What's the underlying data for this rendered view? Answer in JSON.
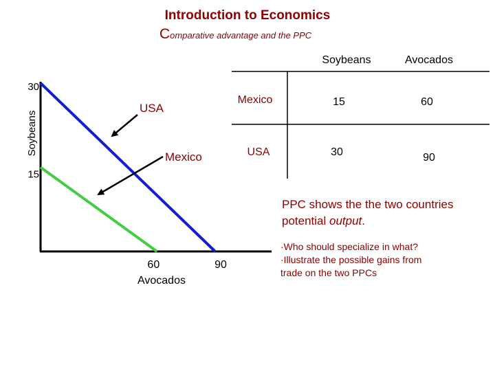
{
  "header": {
    "title": "Introduction to Economics",
    "subtitle_initial": "C",
    "subtitle_rest": "omparative advantage and the PPC"
  },
  "table": {
    "columns": [
      "Soybeans",
      "Avocados"
    ],
    "rows": [
      {
        "country": "Mexico",
        "soybeans": "15",
        "avocados": "60"
      },
      {
        "country": "USA",
        "soybeans": "30",
        "avocados": "90"
      }
    ]
  },
  "chart_data": {
    "type": "line",
    "ylabel": "Soybeans",
    "xlabel": "Avocados",
    "y_ticks": [
      "30",
      "15"
    ],
    "x_ticks": [
      "60",
      "90"
    ],
    "series": [
      {
        "name": "USA",
        "color": "#1020d0",
        "points": [
          [
            0,
            30
          ],
          [
            90,
            0
          ]
        ]
      },
      {
        "name": "Mexico",
        "color": "#44cc44",
        "points": [
          [
            0,
            15
          ],
          [
            60,
            0
          ]
        ]
      }
    ],
    "annotations": [
      {
        "text": "USA",
        "points_to": "USA"
      },
      {
        "text": "Mexico",
        "points_to": "Mexico"
      }
    ]
  },
  "notes": {
    "main_1": "PPC shows the the two countries",
    "main_2a": "potential ",
    "main_2b": "output",
    "main_2c": ".",
    "bullet_1": "·Who should specialize in what?",
    "bullet_2a": "·Illustrate the possible gains from",
    "bullet_2b": "trade on the two PPCs"
  }
}
